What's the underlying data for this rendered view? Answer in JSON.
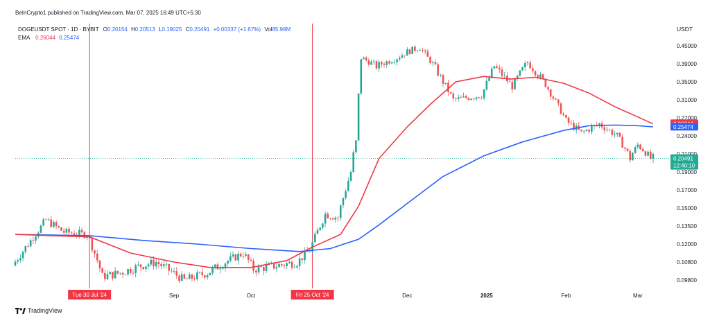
{
  "header": {
    "published": "BeInCrypto1 published on TradingView.com, Mar 07, 2025 16:49 UTC+5:30",
    "symbol": "DOGEUSDT SPOT · 1D · BYBIT",
    "o_label": "O",
    "o_value": "0.20154",
    "h_label": "H",
    "h_value": "0.20513",
    "l_label": "L",
    "l_value": "0.19025",
    "c_label": "C",
    "c_value": "0.20491",
    "change": "+0.00337 (+1.67%)",
    "vol_label": "Vol",
    "vol_value": "85.98M",
    "ema_label": "EMA",
    "ema1_value": "0.26044",
    "ema2_value": "0.25474"
  },
  "footer": {
    "logo_text": "TradingView"
  },
  "colors": {
    "up": "#26a69a",
    "down": "#ef5350",
    "ema_fast": "#f23645",
    "ema_slow": "#2962ff",
    "marker": "#f23645",
    "price_tag": "#22ab94"
  },
  "chart_data": {
    "type": "candlestick",
    "currency": "USDT",
    "y_ticks": [
      "0.45000",
      "0.39000",
      "0.35000",
      "0.31000",
      "0.27000",
      "0.24000",
      "0.21000",
      "0.19000",
      "0.17000",
      "0.15000",
      "0.13500",
      "0.12000",
      "0.10800",
      "0.09800"
    ],
    "x_ticks": [
      "Sep",
      "Oct",
      "Dec",
      "2025",
      "Feb",
      "Mar"
    ],
    "x_tick_dates": [
      "2024-09-01",
      "2024-10-01",
      "2024-12-01",
      "2025-01-01",
      "2025-02-01",
      "2025-03-01"
    ],
    "x_range": [
      "2024-07-01",
      "2025-03-07"
    ],
    "vertical_markers": [
      {
        "label": "Tue 30 Jul '24",
        "date": "2024-07-30"
      },
      {
        "label": "Fri 25 Oct '24",
        "date": "2024-10-25"
      }
    ],
    "price_labels": [
      {
        "value": 0.26044,
        "text": "0.26044",
        "kind": "ema_fast"
      },
      {
        "value": 0.25474,
        "text": "0.25474",
        "kind": "ema_slow"
      },
      {
        "value": 0.20491,
        "text": "0.20491",
        "kind": "last",
        "countdown": "12:40:10"
      }
    ],
    "ema_fast": [
      [
        "2024-07-01",
        0.128
      ],
      [
        "2024-07-15",
        0.127
      ],
      [
        "2024-07-30",
        0.126
      ],
      [
        "2024-08-15",
        0.114
      ],
      [
        "2024-09-01",
        0.108
      ],
      [
        "2024-09-15",
        0.105
      ],
      [
        "2024-10-01",
        0.105
      ],
      [
        "2024-10-15",
        0.109
      ],
      [
        "2024-10-25",
        0.118
      ],
      [
        "2024-11-05",
        0.128
      ],
      [
        "2024-11-12",
        0.152
      ],
      [
        "2024-11-20",
        0.205
      ],
      [
        "2024-12-01",
        0.255
      ],
      [
        "2024-12-10",
        0.3
      ],
      [
        "2024-12-20",
        0.35
      ],
      [
        "2024-12-31",
        0.362
      ],
      [
        "2025-01-10",
        0.356
      ],
      [
        "2025-01-20",
        0.36
      ],
      [
        "2025-01-31",
        0.347
      ],
      [
        "2025-02-10",
        0.325
      ],
      [
        "2025-02-20",
        0.295
      ],
      [
        "2025-03-01",
        0.272
      ],
      [
        "2025-03-07",
        0.26
      ]
    ],
    "ema_slow": [
      [
        "2024-07-01",
        0.128
      ],
      [
        "2024-07-30",
        0.127
      ],
      [
        "2024-08-20",
        0.123
      ],
      [
        "2024-09-10",
        0.12
      ],
      [
        "2024-10-01",
        0.117
      ],
      [
        "2024-10-20",
        0.115
      ],
      [
        "2024-11-01",
        0.117
      ],
      [
        "2024-11-12",
        0.124
      ],
      [
        "2024-11-20",
        0.136
      ],
      [
        "2024-12-01",
        0.155
      ],
      [
        "2024-12-15",
        0.185
      ],
      [
        "2024-12-31",
        0.208
      ],
      [
        "2025-01-15",
        0.23
      ],
      [
        "2025-01-31",
        0.249
      ],
      [
        "2025-02-10",
        0.257
      ],
      [
        "2025-02-20",
        0.258
      ],
      [
        "2025-03-01",
        0.257
      ],
      [
        "2025-03-07",
        0.255
      ]
    ],
    "candle_anchors": [
      [
        "2024-07-01",
        0.106
      ],
      [
        "2024-07-07",
        0.12
      ],
      [
        "2024-07-14",
        0.14
      ],
      [
        "2024-07-21",
        0.13
      ],
      [
        "2024-07-30",
        0.128
      ],
      [
        "2024-08-05",
        0.1
      ],
      [
        "2024-08-12",
        0.102
      ],
      [
        "2024-08-20",
        0.106
      ],
      [
        "2024-08-26",
        0.108
      ],
      [
        "2024-09-06",
        0.098
      ],
      [
        "2024-09-15",
        0.102
      ],
      [
        "2024-09-22",
        0.108
      ],
      [
        "2024-09-29",
        0.114
      ],
      [
        "2024-10-03",
        0.104
      ],
      [
        "2024-10-12",
        0.106
      ],
      [
        "2024-10-20",
        0.108
      ],
      [
        "2024-10-25",
        0.116
      ],
      [
        "2024-10-31",
        0.145
      ],
      [
        "2024-11-05",
        0.142
      ],
      [
        "2024-11-10",
        0.19
      ],
      [
        "2024-11-12",
        0.23
      ],
      [
        "2024-11-14",
        0.41
      ],
      [
        "2024-11-20",
        0.385
      ],
      [
        "2024-11-27",
        0.405
      ],
      [
        "2024-12-02",
        0.43
      ],
      [
        "2024-12-07",
        0.445
      ],
      [
        "2024-12-10",
        0.41
      ],
      [
        "2024-12-20",
        0.31
      ],
      [
        "2024-12-31",
        0.32
      ],
      [
        "2025-01-05",
        0.385
      ],
      [
        "2025-01-12",
        0.34
      ],
      [
        "2025-01-18",
        0.395
      ],
      [
        "2025-01-25",
        0.345
      ],
      [
        "2025-02-02",
        0.265
      ],
      [
        "2025-02-08",
        0.245
      ],
      [
        "2025-02-15",
        0.26
      ],
      [
        "2025-02-22",
        0.24
      ],
      [
        "2025-02-27",
        0.205
      ],
      [
        "2025-03-02",
        0.225
      ],
      [
        "2025-03-07",
        0.205
      ]
    ]
  }
}
